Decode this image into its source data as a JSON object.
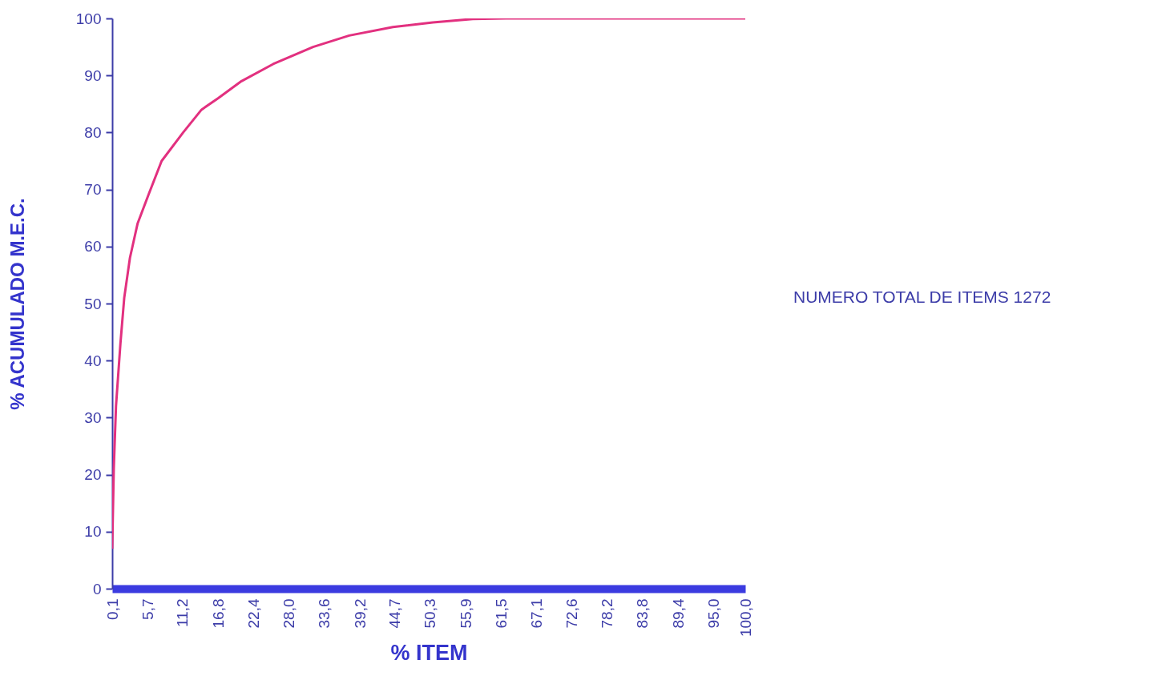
{
  "chart_data": {
    "type": "line",
    "xlabel": "% ITEM",
    "ylabel": "%  ACUMULADO M.E.C.",
    "annotations": [
      "NUMERO TOTAL DE ITEMS 1272"
    ],
    "x": [
      0.1,
      0.35,
      0.7,
      1.4,
      2,
      2.9,
      4.1,
      5.8,
      7.9,
      11.3,
      14.2,
      16.8,
      20.5,
      25.5,
      31.8,
      37.5,
      44.4,
      50.7,
      57,
      62.2,
      100
    ],
    "series": [
      {
        "color": "#e2307f",
        "values": [
          7,
          21,
          32,
          43,
          51,
          58,
          64,
          69,
          75,
          80,
          84,
          86,
          89,
          92,
          95,
          97,
          98.5,
          99.3,
          99.9,
          100,
          100
        ]
      }
    ],
    "xlim": [
      0.1,
      100
    ],
    "xticks": [
      {
        "value": 0.1,
        "label": "0,1"
      },
      {
        "value": 5.7,
        "label": "5,7"
      },
      {
        "value": 11.2,
        "label": "11,2"
      },
      {
        "value": 16.8,
        "label": "16,8"
      },
      {
        "value": 22.4,
        "label": "22,4"
      },
      {
        "value": 28,
        "label": "28,0"
      },
      {
        "value": 33.6,
        "label": "33,6"
      },
      {
        "value": 39.2,
        "label": "39,2"
      },
      {
        "value": 44.7,
        "label": "44,7"
      },
      {
        "value": 50.3,
        "label": "50,3"
      },
      {
        "value": 55.9,
        "label": "55,9"
      },
      {
        "value": 61.5,
        "label": "61,5"
      },
      {
        "value": 67.1,
        "label": "67,1"
      },
      {
        "value": 72.6,
        "label": "72,6"
      },
      {
        "value": 78.2,
        "label": "78,2"
      },
      {
        "value": 83.8,
        "label": "83,8"
      },
      {
        "value": 89.4,
        "label": "89,4"
      },
      {
        "value": 95,
        "label": "95,0"
      },
      {
        "value": 100,
        "label": "100,0"
      }
    ],
    "ylim": [
      0,
      100
    ],
    "yticks": [
      0,
      10,
      20,
      30,
      40,
      50,
      60,
      70,
      80,
      90,
      100
    ],
    "grid": false,
    "marker": "none",
    "line_style": "solid"
  }
}
